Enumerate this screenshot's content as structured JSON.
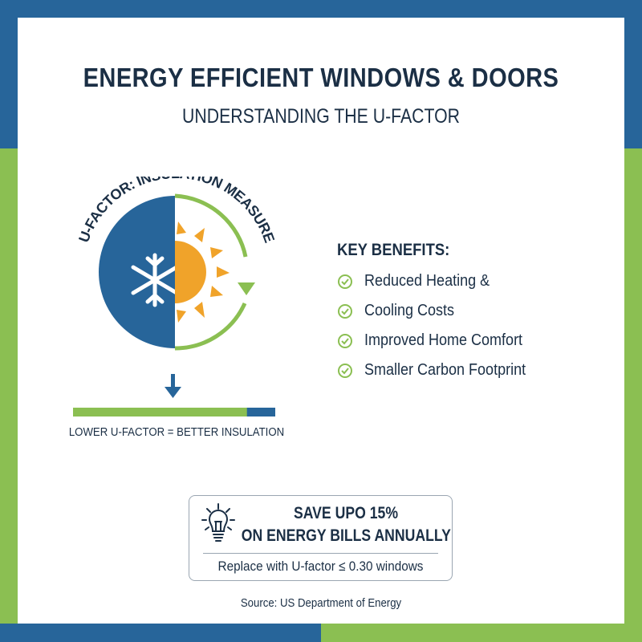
{
  "header": {
    "title": "ENERGY EFFICIENT WINDOWS & DOORS",
    "subtitle": "UNDERSTANDING THE U-FACTOR"
  },
  "diagram": {
    "arc_label": "U-FACTOR: INSULATION MEASURE",
    "icons": [
      "snowflake-icon",
      "sun-icon",
      "cycle-arrow-icon",
      "down-arrow-icon"
    ],
    "scale_fill_percent": 86,
    "scale_label": "LOWER U-FACTOR = BETTER INSULATION"
  },
  "benefits": {
    "heading": "KEY BENEFITS:",
    "items": [
      {
        "label": "Reduced Heating &"
      },
      {
        "label": "Cooling Costs"
      },
      {
        "label": "Improved Home Comfort"
      },
      {
        "label": "Smaller Carbon Footprint"
      }
    ]
  },
  "callout": {
    "icon": "lightbulb-icon",
    "line1": "SAVE UPO 15%",
    "line2": "ON ENERGY BILLS ANNUALLY",
    "line3": "Replace with U-factor ≤ 0.30 windows"
  },
  "source": "Source: US Department of Energy",
  "colors": {
    "blue": "#27659a",
    "green": "#8bbf52",
    "orange": "#f0a32a",
    "navy": "#1b2f45"
  }
}
